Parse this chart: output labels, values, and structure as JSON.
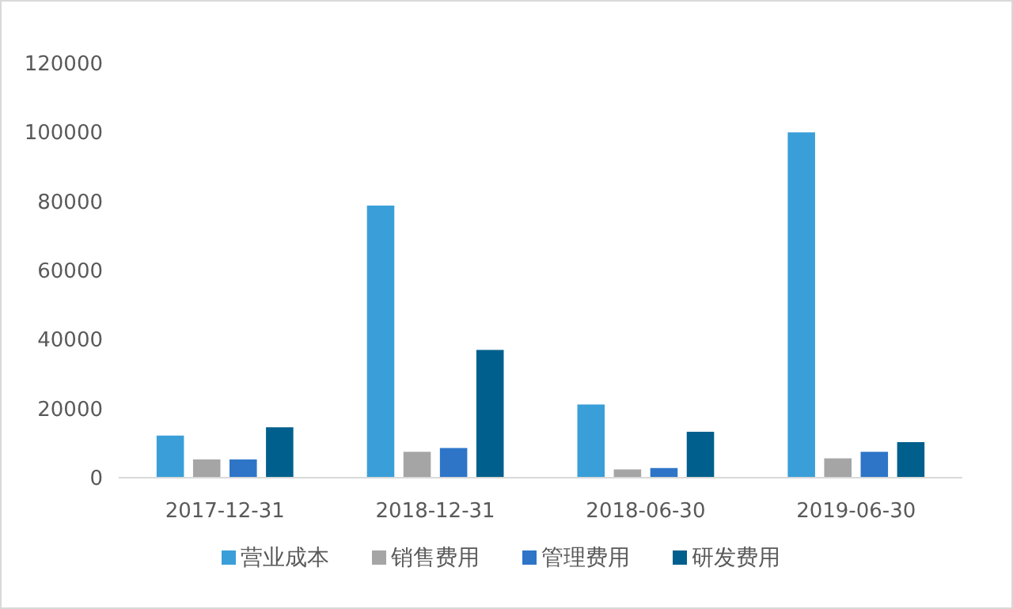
{
  "chart_data": {
    "type": "bar",
    "categories": [
      "2017-12-31",
      "2018-12-31",
      "2018-06-30",
      "2019-06-30"
    ],
    "series": [
      {
        "name": "营业成本",
        "color": "#3a9fd8",
        "values": [
          12200,
          78800,
          21200,
          100000
        ]
      },
      {
        "name": "销售费用",
        "color": "#a5a5a5",
        "values": [
          5300,
          7500,
          2400,
          5600
        ]
      },
      {
        "name": "管理费用",
        "color": "#2e75c8",
        "values": [
          5300,
          8600,
          2800,
          7500
        ]
      },
      {
        "name": "研发费用",
        "color": "#005f8c",
        "values": [
          14600,
          37000,
          13300,
          10300
        ]
      }
    ],
    "ylim": [
      0,
      120000
    ],
    "yticks": [
      0,
      20000,
      40000,
      60000,
      80000,
      100000,
      120000
    ],
    "grid": false,
    "legend": "bottom"
  }
}
